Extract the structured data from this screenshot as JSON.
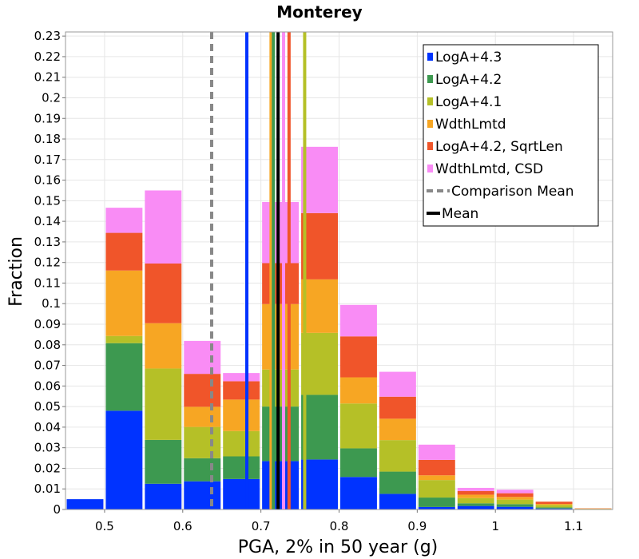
{
  "chart_data": {
    "type": "bar",
    "stacked": true,
    "title": "Monterey",
    "xlabel": "PGA, 2% in 50 year (g)",
    "ylabel": "Fraction",
    "xlim": [
      0.45,
      1.15
    ],
    "ylim": [
      0,
      0.232
    ],
    "bin_width": 0.05,
    "x_ticks": [
      "0.5",
      "0.6",
      "0.7",
      "0.8",
      "0.9",
      "1",
      "1.1"
    ],
    "y_ticks": [
      "0",
      "0.01",
      "0.02",
      "0.03",
      "0.04",
      "0.05",
      "0.06",
      "0.07",
      "0.08",
      "0.09",
      "0.1",
      "0.11",
      "0.12",
      "0.13",
      "0.14",
      "0.15",
      "0.16",
      "0.17",
      "0.18",
      "0.19",
      "0.2",
      "0.21",
      "0.22",
      "0.23"
    ],
    "bin_centers": [
      0.475,
      0.525,
      0.575,
      0.625,
      0.675,
      0.725,
      0.775,
      0.825,
      0.875,
      0.925,
      0.975,
      1.025,
      1.075,
      1.125
    ],
    "series": [
      {
        "name": "LogA+4.3",
        "color": "#0033ff",
        "values": [
          0.005,
          0.048,
          0.0125,
          0.0137,
          0.0148,
          0.0235,
          0.0243,
          0.0158,
          0.0076,
          0.0012,
          0.0017,
          0.0013,
          0.0005,
          0.0
        ]
      },
      {
        "name": "LogA+4.2",
        "color": "#3d9950",
        "values": [
          0.0,
          0.0328,
          0.0213,
          0.0112,
          0.011,
          0.0265,
          0.0314,
          0.0139,
          0.0108,
          0.0046,
          0.0013,
          0.0013,
          0.0005,
          0.0002
        ]
      },
      {
        "name": "LogA+4.1",
        "color": "#b5c027",
        "values": [
          0.0,
          0.0035,
          0.0347,
          0.0152,
          0.0123,
          0.018,
          0.0301,
          0.0218,
          0.0153,
          0.0085,
          0.0025,
          0.0022,
          0.0012,
          0.0001
        ]
      },
      {
        "name": "WdthLmtd",
        "color": "#f7a623",
        "values": [
          0.0,
          0.0318,
          0.022,
          0.0098,
          0.0153,
          0.0318,
          0.026,
          0.0127,
          0.0104,
          0.0023,
          0.0017,
          0.0013,
          0.0005,
          0.0002
        ]
      },
      {
        "name": "LogA+4.2, SqrtLen",
        "color": "#f0552a",
        "values": [
          0.0,
          0.0183,
          0.029,
          0.016,
          0.0089,
          0.0199,
          0.0322,
          0.0199,
          0.0107,
          0.0075,
          0.0018,
          0.0018,
          0.0011,
          0.0001
        ]
      },
      {
        "name": "WdthLmtd, CSD",
        "color": "#f98cf5",
        "values": [
          0.0,
          0.0122,
          0.0355,
          0.016,
          0.004,
          0.0297,
          0.0322,
          0.0153,
          0.0121,
          0.0074,
          0.0015,
          0.0017,
          0.0,
          0.0
        ]
      }
    ],
    "vertical_lines": [
      {
        "name": "LogA+4.3",
        "x": 0.682,
        "color": "#0033ff",
        "style": "solid"
      },
      {
        "name": "WdthLmtd",
        "x": 0.713,
        "color": "#f7a623",
        "style": "solid"
      },
      {
        "name": "LogA+4.2",
        "x": 0.716,
        "color": "#3d9950",
        "style": "solid"
      },
      {
        "name": "WdthLmtd, CSD",
        "x": 0.729,
        "color": "#f98cf5",
        "style": "solid"
      },
      {
        "name": "LogA+4.2, SqrtLen",
        "x": 0.736,
        "color": "#f0552a",
        "style": "solid"
      },
      {
        "name": "LogA+4.1",
        "x": 0.756,
        "color": "#b5c027",
        "style": "solid"
      },
      {
        "name": "Comparison Mean",
        "x": 0.637,
        "color": "#888888",
        "style": "dashed"
      },
      {
        "name": "Mean",
        "x": 0.722,
        "color": "#000000",
        "style": "solid"
      }
    ],
    "legend": {
      "position": "top-right",
      "entries": [
        {
          "label": "LogA+4.3",
          "color": "#0033ff",
          "kind": "square"
        },
        {
          "label": "LogA+4.2",
          "color": "#3d9950",
          "kind": "square"
        },
        {
          "label": "LogA+4.1",
          "color": "#b5c027",
          "kind": "square"
        },
        {
          "label": "WdthLmtd",
          "color": "#f7a623",
          "kind": "square"
        },
        {
          "label": "LogA+4.2, SqrtLen",
          "color": "#f0552a",
          "kind": "square"
        },
        {
          "label": "WdthLmtd, CSD",
          "color": "#f98cf5",
          "kind": "square"
        },
        {
          "label": "Comparison Mean",
          "color": "#888888",
          "kind": "dashed-line"
        },
        {
          "label": "Mean",
          "color": "#000000",
          "kind": "line"
        }
      ]
    },
    "grid": true
  }
}
